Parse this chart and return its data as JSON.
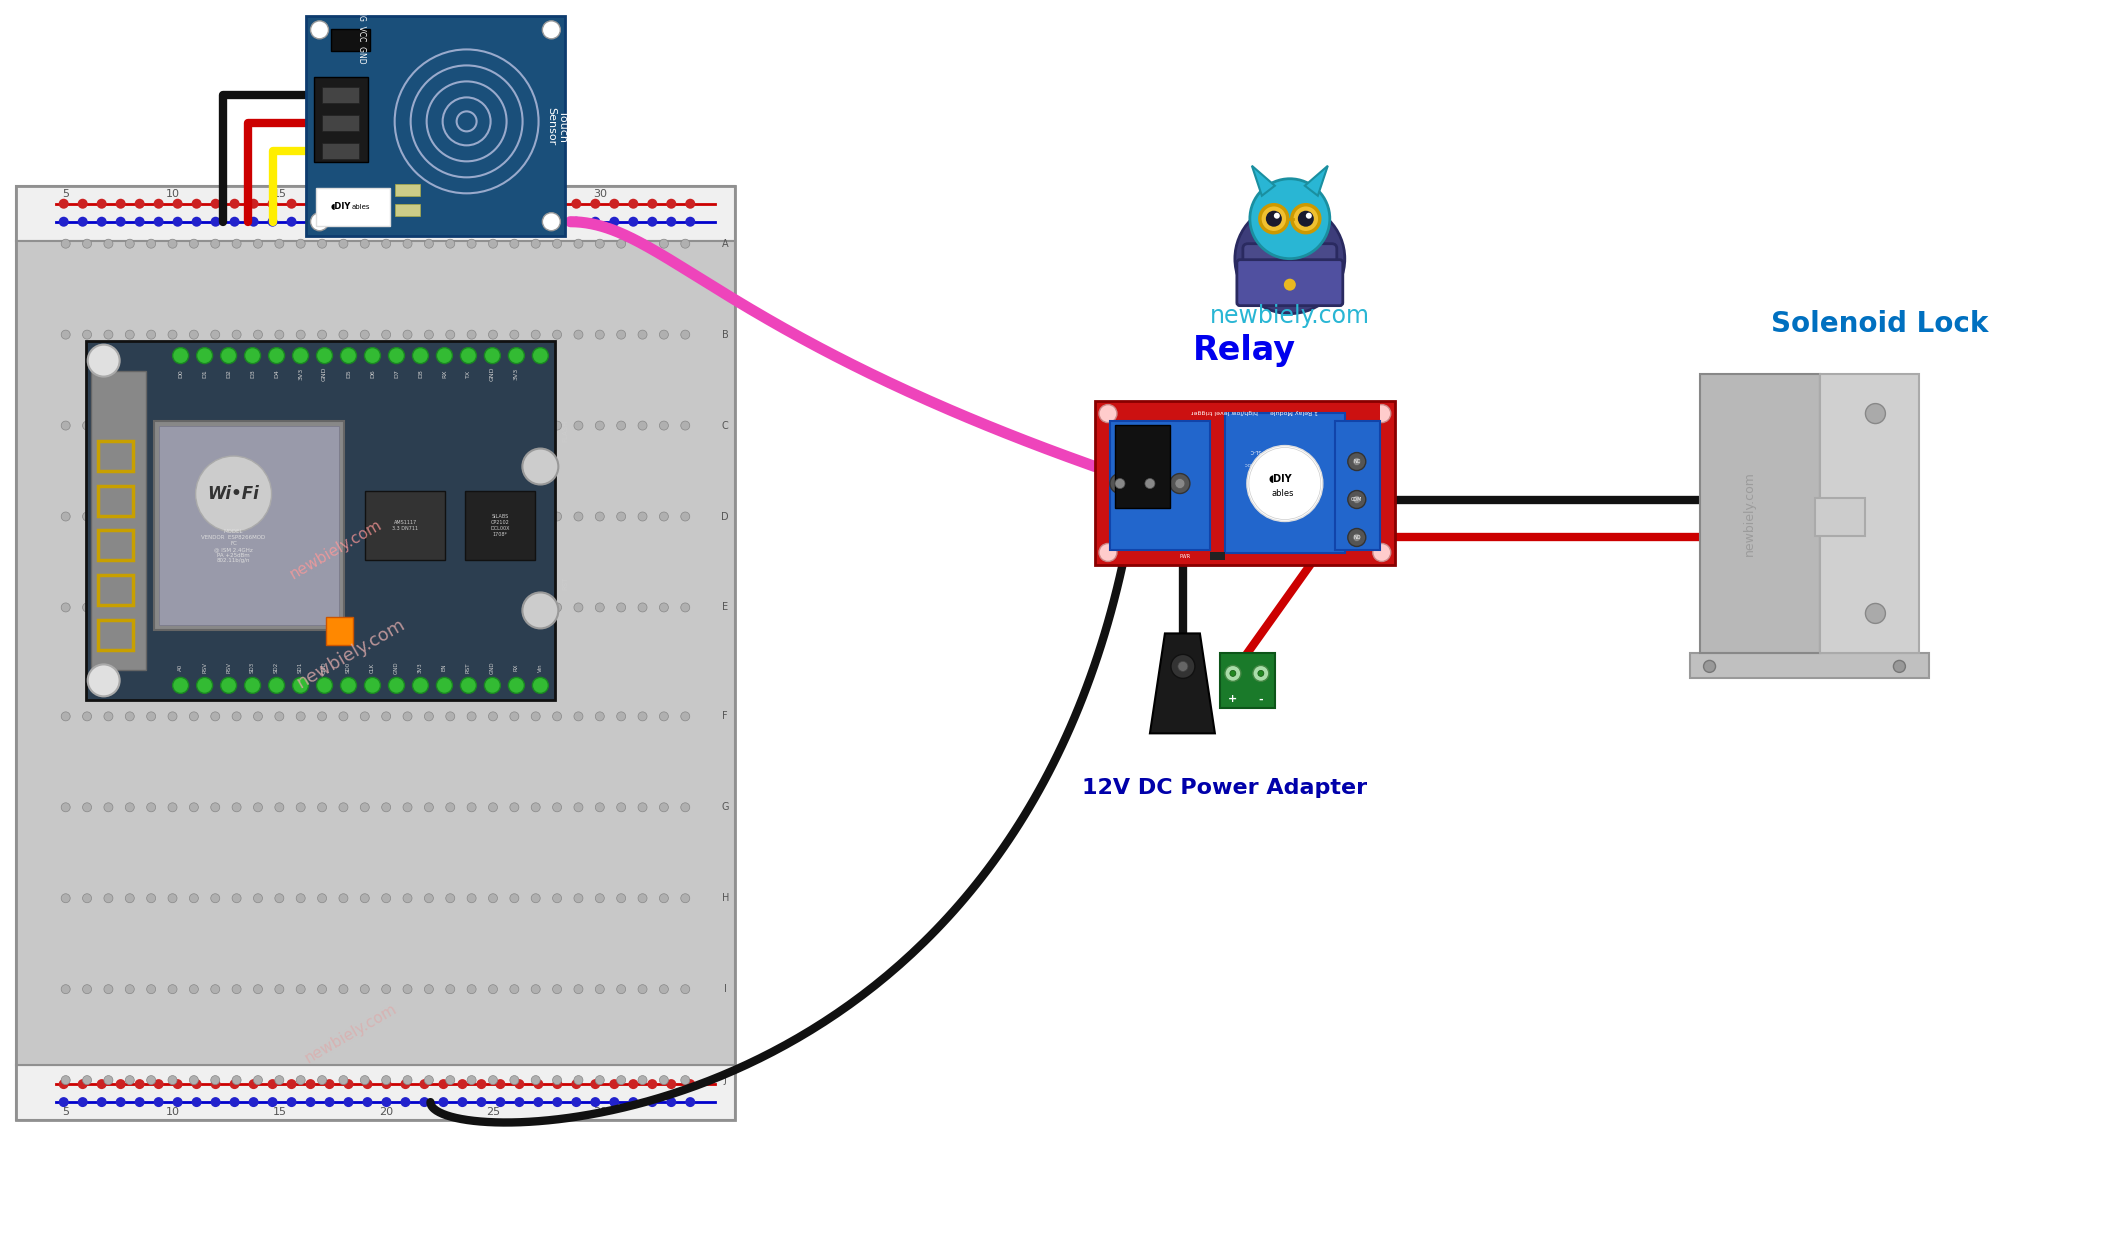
{
  "bg_color": "#ffffff",
  "newbiely_text": "newbiely.com",
  "newbiely_color": "#29b6d4",
  "relay_label": "Relay",
  "relay_label_color": "#0000ee",
  "solenoid_label": "Solenoid Lock",
  "solenoid_label_color": "#0070c0",
  "power_label": "12V DC Power Adapter",
  "power_label_color": "#0000aa",
  "wire_black": "#111111",
  "wire_red": "#cc0000",
  "wire_yellow": "#ffee00",
  "wire_pink": "#ee44bb",
  "wire_green": "#33bb33",
  "bb_body": "#c8c8c8",
  "bb_border": "#909090",
  "bb_rail_red": "#cc2222",
  "bb_rail_blue": "#2222cc",
  "bb_hole": "#b0b0b0",
  "bb_hole_edge": "#888888",
  "touch_pcb": "#1a4f7a",
  "touch_pcb_edge": "#0d3b6e",
  "relay_red": "#cc1111",
  "relay_blue": "#2266cc",
  "mcu_dark": "#1e2a35",
  "mcu_mid": "#2c3e50",
  "sol_body": "#b0b0b0",
  "sol_plate": "#999999",
  "watermark_color": "#ddaaaa",
  "watermark_color2": "#aaaaaa"
}
